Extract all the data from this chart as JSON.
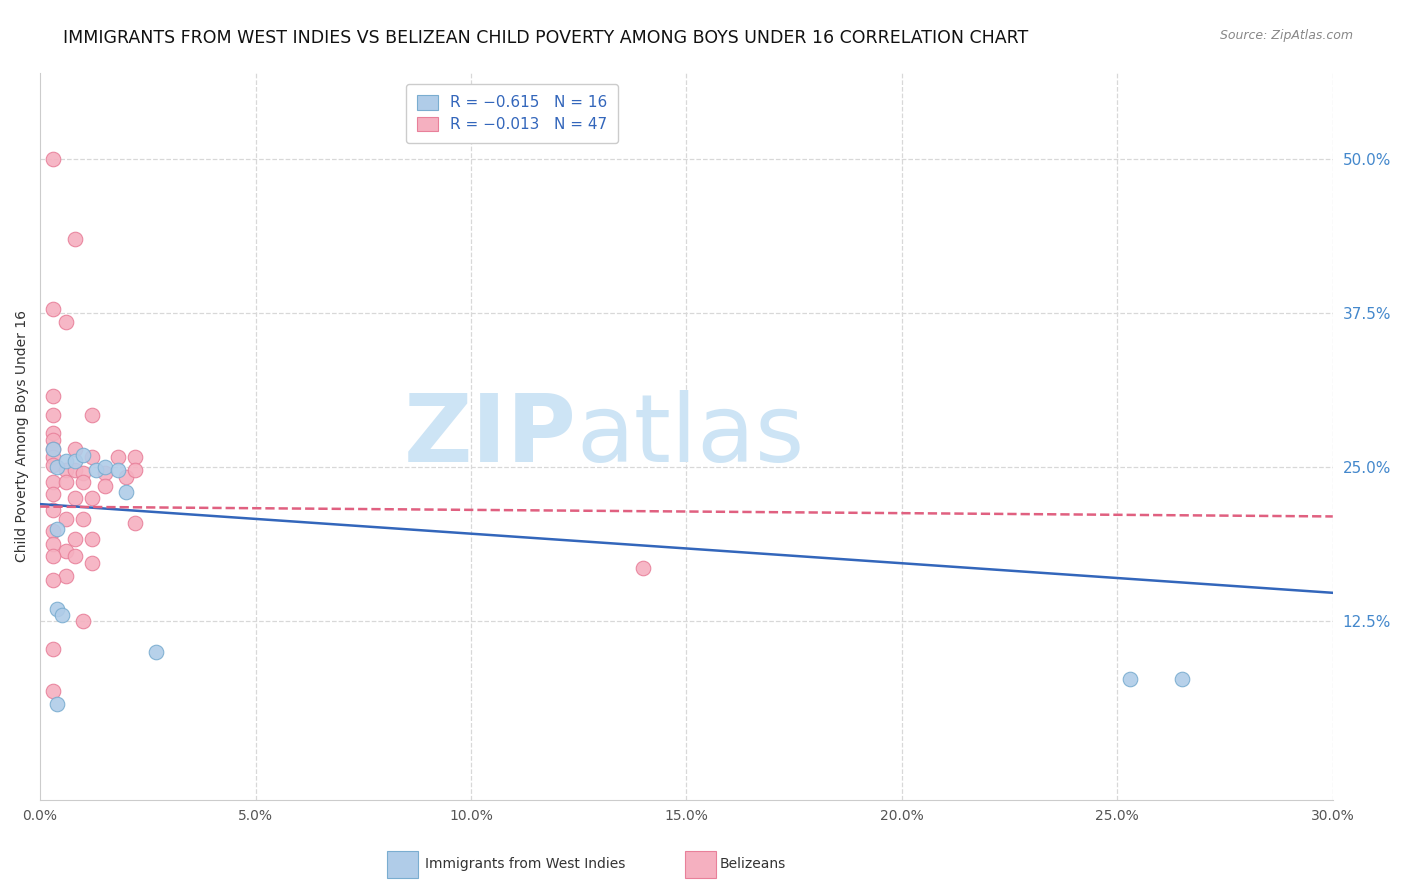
{
  "title": "IMMIGRANTS FROM WEST INDIES VS BELIZEAN CHILD POVERTY AMONG BOYS UNDER 16 CORRELATION CHART",
  "source": "Source: ZipAtlas.com",
  "ylabel": "Child Poverty Among Boys Under 16",
  "xlim": [
    0.0,
    0.3
  ],
  "ylim": [
    -0.02,
    0.57
  ],
  "xtick_labels": [
    "0.0%",
    "5.0%",
    "10.0%",
    "15.0%",
    "20.0%",
    "25.0%",
    "30.0%"
  ],
  "xtick_vals": [
    0.0,
    0.05,
    0.1,
    0.15,
    0.2,
    0.25,
    0.3
  ],
  "ytick_right_labels": [
    "12.5%",
    "25.0%",
    "37.5%",
    "50.0%"
  ],
  "ytick_right_vals": [
    0.125,
    0.25,
    0.375,
    0.5
  ],
  "legend_label_blue": "R = −0.615   N = 16",
  "legend_label_pink": "R = −0.013   N = 47",
  "watermark_zip": "ZIP",
  "watermark_atlas": "atlas",
  "watermark_color": "#cde4f5",
  "blue_scatter": [
    [
      0.003,
      0.265
    ],
    [
      0.004,
      0.25
    ],
    [
      0.006,
      0.255
    ],
    [
      0.008,
      0.255
    ],
    [
      0.01,
      0.26
    ],
    [
      0.013,
      0.248
    ],
    [
      0.015,
      0.25
    ],
    [
      0.018,
      0.248
    ],
    [
      0.02,
      0.23
    ],
    [
      0.004,
      0.135
    ],
    [
      0.005,
      0.13
    ],
    [
      0.027,
      0.1
    ],
    [
      0.004,
      0.058
    ],
    [
      0.253,
      0.078
    ],
    [
      0.265,
      0.078
    ],
    [
      0.004,
      0.2
    ]
  ],
  "pink_scatter": [
    [
      0.003,
      0.5
    ],
    [
      0.008,
      0.435
    ],
    [
      0.003,
      0.378
    ],
    [
      0.006,
      0.368
    ],
    [
      0.003,
      0.308
    ],
    [
      0.003,
      0.292
    ],
    [
      0.012,
      0.292
    ],
    [
      0.003,
      0.278
    ],
    [
      0.003,
      0.272
    ],
    [
      0.003,
      0.265
    ],
    [
      0.008,
      0.265
    ],
    [
      0.003,
      0.258
    ],
    [
      0.012,
      0.258
    ],
    [
      0.018,
      0.258
    ],
    [
      0.022,
      0.258
    ],
    [
      0.003,
      0.252
    ],
    [
      0.006,
      0.248
    ],
    [
      0.008,
      0.248
    ],
    [
      0.01,
      0.245
    ],
    [
      0.015,
      0.245
    ],
    [
      0.02,
      0.242
    ],
    [
      0.022,
      0.248
    ],
    [
      0.003,
      0.238
    ],
    [
      0.006,
      0.238
    ],
    [
      0.01,
      0.238
    ],
    [
      0.015,
      0.235
    ],
    [
      0.003,
      0.228
    ],
    [
      0.008,
      0.225
    ],
    [
      0.012,
      0.225
    ],
    [
      0.003,
      0.215
    ],
    [
      0.006,
      0.208
    ],
    [
      0.01,
      0.208
    ],
    [
      0.022,
      0.205
    ],
    [
      0.003,
      0.198
    ],
    [
      0.008,
      0.192
    ],
    [
      0.012,
      0.192
    ],
    [
      0.003,
      0.188
    ],
    [
      0.006,
      0.182
    ],
    [
      0.003,
      0.178
    ],
    [
      0.008,
      0.178
    ],
    [
      0.012,
      0.172
    ],
    [
      0.006,
      0.162
    ],
    [
      0.003,
      0.158
    ],
    [
      0.003,
      0.102
    ],
    [
      0.14,
      0.168
    ],
    [
      0.003,
      0.068
    ],
    [
      0.01,
      0.125
    ]
  ],
  "blue_line": {
    "x": [
      0.0,
      0.3
    ],
    "y": [
      0.22,
      0.148
    ]
  },
  "pink_line": {
    "x": [
      0.0,
      0.3
    ],
    "y": [
      0.218,
      0.21
    ]
  },
  "dot_size": 110,
  "blue_dot_color": "#b0cce8",
  "blue_dot_edge": "#7aadd0",
  "pink_dot_color": "#f5b0c0",
  "pink_dot_edge": "#e8809a",
  "blue_line_color": "#3366bb",
  "pink_line_color": "#e06080",
  "background_color": "#ffffff",
  "grid_color": "#d8d8d8",
  "title_fontsize": 12.5,
  "axis_label_fontsize": 10,
  "tick_fontsize": 10,
  "legend_fontsize": 11,
  "bottom_legend_blue_label": "Immigrants from West Indies",
  "bottom_legend_pink_label": "Belizeans"
}
